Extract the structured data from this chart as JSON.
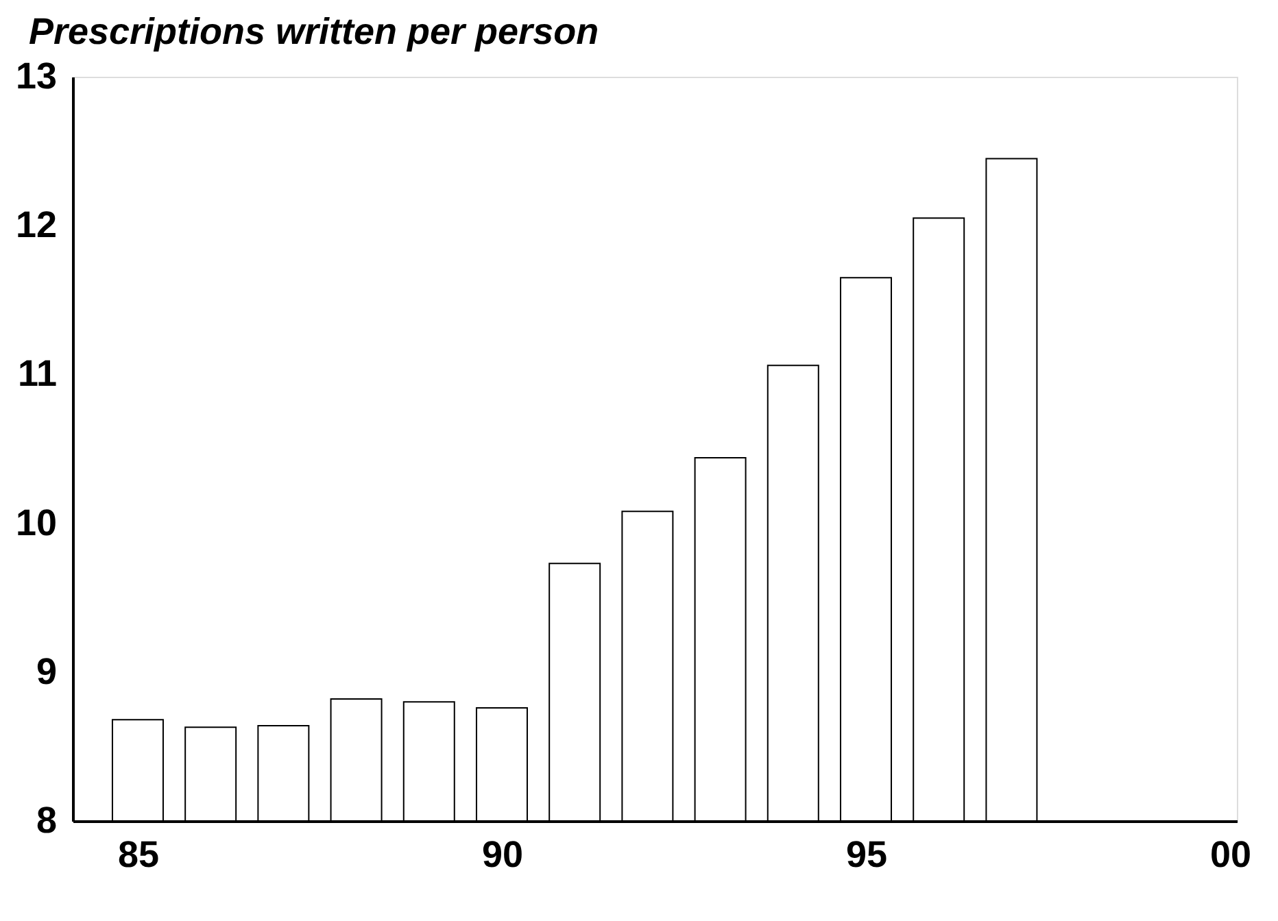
{
  "chart_data": {
    "type": "bar",
    "title": "Prescriptions written per person",
    "x": [
      1985,
      1986,
      1987,
      1988,
      1989,
      1990,
      1991,
      1992,
      1993,
      1994,
      1995,
      1996,
      1997
    ],
    "values": [
      8.68,
      8.63,
      8.64,
      8.82,
      8.8,
      8.76,
      9.73,
      10.08,
      10.44,
      11.06,
      11.65,
      12.05,
      12.45
    ],
    "color": "#ffffff",
    "xlim": [
      1984.2,
      2000
    ],
    "xticks": [
      {
        "value": 1985,
        "label": "85"
      },
      {
        "value": 1990,
        "label": "90"
      },
      {
        "value": 1995,
        "label": "95"
      },
      {
        "value": 2000,
        "label": "00"
      }
    ],
    "ylim": [
      8,
      13
    ],
    "yticks": [
      8,
      9,
      10,
      11,
      12,
      13
    ]
  }
}
